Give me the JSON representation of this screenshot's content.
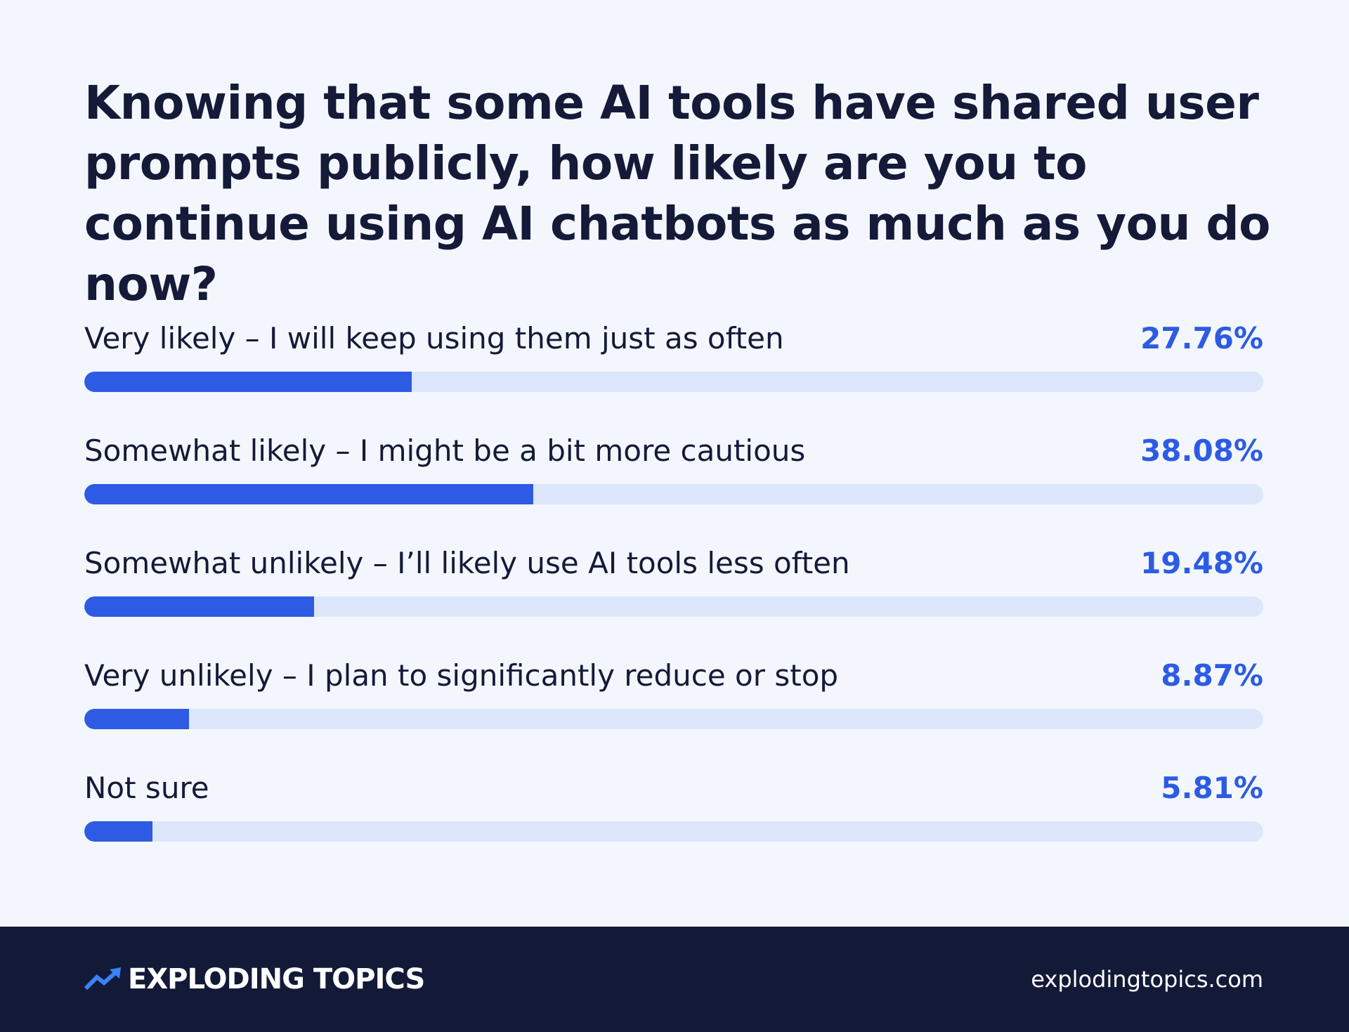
{
  "chart_data": {
    "type": "bar",
    "orientation": "horizontal",
    "title": "Knowing that some AI tools have shared user prompts publicly, how likely are you to continue using AI chatbots as much as you do now?",
    "categories": [
      "Very likely – I will keep using them just as often",
      "Somewhat likely – I might be a bit more cautious",
      "Somewhat unlikely – I’ll likely use AI tools less often",
      "Very unlikely – I plan to significantly reduce or stop",
      "Not sure"
    ],
    "values": [
      27.76,
      38.08,
      19.48,
      8.87,
      5.81
    ],
    "value_labels": [
      "27.76%",
      "38.08%",
      "19.48%",
      "8.87%",
      "5.81%"
    ],
    "xlim": [
      0,
      100
    ],
    "color": "#2d5be3",
    "value_label_color": "#2d5be3"
  },
  "footer": {
    "brand": "EXPLODING TOPICS",
    "url": "explodingtopics.com"
  }
}
